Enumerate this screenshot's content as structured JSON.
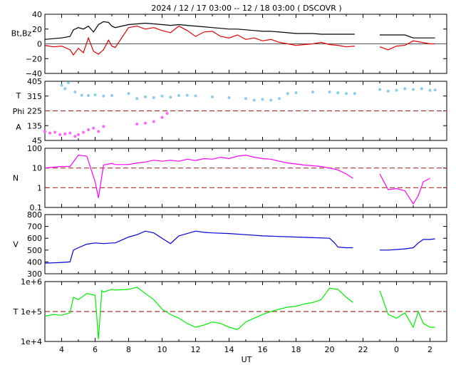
{
  "title": "2024 / 12 / 17   03:00  --  12 / 18   03:00 ( DSCOVR )",
  "xlabel": "UT",
  "x_ticks": [
    "4",
    "6",
    "8",
    "10",
    "12",
    "14",
    "16",
    "18",
    "20",
    "22",
    "0",
    "2"
  ],
  "colors": {
    "bt": "#000000",
    "bz": "#e00000",
    "phi": "#88ccee",
    "theta": "#ff66ff",
    "density": "#ff00ff",
    "speed": "#0000dd",
    "temperature": "#00ee00",
    "ref_line": "#aa3333"
  },
  "chart_data": [
    {
      "type": "line",
      "panel": "magnetic field",
      "ylabel": "Bt,Bz",
      "yticks": [
        "40",
        "20",
        "0",
        "−20",
        "−40"
      ],
      "ylim": [
        -40,
        40
      ],
      "x_unit": "hours since 2024-12-17 00:00 UT",
      "xlim": [
        3,
        27
      ],
      "series": [
        {
          "key": "bt",
          "x": [
            3.0,
            3.5,
            4.0,
            4.5,
            4.7,
            5.0,
            5.3,
            5.6,
            5.9,
            6.2,
            6.5,
            6.8,
            7.0,
            7.2,
            8.0,
            8.5,
            9.0,
            9.5,
            10.0,
            10.5,
            11.0,
            11.5,
            12.0,
            12.5,
            13.0,
            13.5,
            14.0,
            14.5,
            15.0,
            15.5,
            16.0,
            16.5,
            17.0,
            17.5,
            18.0,
            18.5,
            19.0,
            19.5,
            20.0,
            20.5,
            21.0,
            21.5,
            23.0,
            23.5,
            24.0,
            24.5,
            25.0,
            25.5,
            26.0,
            26.3
          ],
          "y": [
            6,
            7,
            8,
            10,
            19,
            22,
            20,
            24,
            16,
            26,
            30,
            29,
            24,
            22,
            26,
            27,
            28,
            27,
            26,
            25,
            26,
            25,
            24,
            23,
            22,
            21,
            20,
            20,
            19,
            18,
            17,
            17,
            16,
            15,
            14,
            14,
            14,
            13,
            13,
            13,
            13,
            13,
            12,
            12,
            12,
            12,
            8,
            8,
            8,
            8
          ]
        },
        {
          "key": "bz",
          "x": [
            3.0,
            3.5,
            4.0,
            4.5,
            4.7,
            5.0,
            5.3,
            5.6,
            5.9,
            6.2,
            6.5,
            6.8,
            7.0,
            7.2,
            8.0,
            8.5,
            9.0,
            9.5,
            10.0,
            10.5,
            11.0,
            11.5,
            12.0,
            12.5,
            13.0,
            13.5,
            14.0,
            14.5,
            15.0,
            15.5,
            16.0,
            16.5,
            17.0,
            17.5,
            18.0,
            18.5,
            19.0,
            19.5,
            20.0,
            20.5,
            21.0,
            21.5,
            23.0,
            23.5,
            24.0,
            24.5,
            25.0,
            25.5,
            26.0,
            26.3
          ],
          "y": [
            -2,
            -4,
            -3,
            -8,
            -15,
            -6,
            -12,
            8,
            -10,
            -14,
            -8,
            5,
            -3,
            -5,
            22,
            24,
            20,
            22,
            18,
            15,
            24,
            18,
            10,
            16,
            17,
            10,
            8,
            12,
            6,
            8,
            4,
            6,
            2,
            0,
            -2,
            -1,
            0,
            2,
            -1,
            -2,
            -4,
            -3,
            -4,
            -8,
            -3,
            -2,
            4,
            2,
            0,
            0
          ]
        }
      ]
    },
    {
      "type": "scatter",
      "panel": "IMF angles",
      "ylabel_top": "T",
      "ylabel_mid": "Phi",
      "ylabel_bot": "A",
      "yticks": [
        "405",
        "315",
        "225",
        "135",
        "45"
      ],
      "ylim": [
        45,
        405
      ],
      "ref_line": 225,
      "series": [
        {
          "key": "phi",
          "x": [
            4.0,
            4.2,
            4.4,
            4.8,
            5.2,
            5.6,
            6.0,
            6.5,
            7.0,
            8.0,
            8.5,
            9.0,
            9.5,
            10.0,
            10.5,
            11.0,
            11.5,
            12.0,
            13.0,
            14.0,
            15.0,
            15.5,
            16.0,
            16.5,
            17.0,
            17.5,
            18.0,
            19.0,
            20.0,
            20.5,
            21.0,
            21.5,
            23.0,
            23.5,
            24.0,
            24.5,
            25.0,
            25.5,
            26.0,
            26.3
          ],
          "y": [
            380,
            360,
            395,
            340,
            320,
            318,
            322,
            315,
            318,
            330,
            300,
            310,
            305,
            315,
            308,
            318,
            320,
            316,
            310,
            305,
            300,
            290,
            295,
            290,
            300,
            330,
            335,
            340,
            340,
            335,
            330,
            330,
            355,
            345,
            350,
            360,
            355,
            360,
            350,
            352
          ]
        },
        {
          "key": "theta",
          "x": [
            3.0,
            3.3,
            3.6,
            3.9,
            4.2,
            4.5,
            4.8,
            5.0,
            5.3,
            5.6,
            5.9,
            6.2,
            6.5,
            8.5,
            9.0,
            9.5,
            10.0,
            10.3
          ],
          "y": [
            100,
            90,
            95,
            80,
            85,
            90,
            70,
            80,
            95,
            110,
            120,
            100,
            130,
            145,
            150,
            160,
            185,
            210
          ]
        }
      ]
    },
    {
      "type": "line",
      "panel": "density",
      "ylabel": "N",
      "yticks": [
        "100",
        "10",
        "1",
        "0.1"
      ],
      "ylim": [
        0.1,
        100
      ],
      "scale": "log",
      "ref_lines": [
        10,
        1
      ],
      "series": [
        {
          "key": "density",
          "x": [
            3.0,
            3.5,
            4.0,
            4.5,
            5.0,
            5.5,
            6.0,
            6.2,
            6.5,
            6.8,
            7.0,
            7.2,
            8.0,
            8.5,
            9.0,
            9.5,
            10.0,
            10.5,
            11.0,
            11.5,
            12.0,
            12.5,
            13.0,
            13.5,
            14.0,
            14.5,
            15.0,
            15.5,
            16.0,
            16.5,
            17.0,
            17.5,
            18.0,
            18.5,
            19.0,
            19.5,
            20.0,
            20.5,
            21.0,
            21.4,
            23.0,
            23.5,
            24.0,
            24.5,
            25.0,
            25.3,
            25.6,
            26.0
          ],
          "y": [
            10,
            11,
            12,
            12,
            45,
            40,
            2,
            0.3,
            14,
            16,
            17,
            15,
            15,
            18,
            20,
            25,
            22,
            25,
            22,
            28,
            24,
            30,
            28,
            35,
            30,
            40,
            45,
            35,
            30,
            28,
            22,
            18,
            16,
            14,
            13,
            12,
            10,
            8,
            5,
            3,
            5,
            0.8,
            0.9,
            0.7,
            0.15,
            0.4,
            2,
            3
          ]
        }
      ]
    },
    {
      "type": "line",
      "panel": "speed",
      "ylabel": "V",
      "yticks": [
        "800",
        "700",
        "600",
        "500",
        "400",
        "300"
      ],
      "ylim": [
        300,
        800
      ],
      "series": [
        {
          "key": "speed",
          "x": [
            3.0,
            3.5,
            4.0,
            4.5,
            4.7,
            5.0,
            5.5,
            6.0,
            6.5,
            7.0,
            7.2,
            8.0,
            8.5,
            9.0,
            9.5,
            10.0,
            10.5,
            11.0,
            11.5,
            12.0,
            12.5,
            13.0,
            14.0,
            15.0,
            16.0,
            17.0,
            18.0,
            19.0,
            20.0,
            20.3,
            20.5,
            21.0,
            21.4,
            23.0,
            23.5,
            24.0,
            24.5,
            25.0,
            25.3,
            25.6,
            26.0,
            26.3
          ],
          "y": [
            390,
            392,
            396,
            400,
            500,
            520,
            550,
            560,
            555,
            560,
            560,
            610,
            630,
            660,
            645,
            600,
            555,
            620,
            640,
            660,
            650,
            645,
            640,
            630,
            620,
            615,
            610,
            605,
            600,
            560,
            525,
            520,
            520,
            500,
            500,
            505,
            510,
            520,
            560,
            590,
            590,
            595
          ]
        }
      ]
    },
    {
      "type": "line",
      "panel": "temperature",
      "ylabel": "T",
      "yticks": [
        "1e+6",
        "1e+5",
        "1e+4"
      ],
      "ylim": [
        10000,
        1000000
      ],
      "scale": "log",
      "ref_line": 100000,
      "series": [
        {
          "key": "temperature",
          "x": [
            3.0,
            3.5,
            4.0,
            4.5,
            4.7,
            5.0,
            5.5,
            6.0,
            6.2,
            6.4,
            6.5,
            7.0,
            7.2,
            8.0,
            8.5,
            9.0,
            9.5,
            10.0,
            10.5,
            11.0,
            11.5,
            12.0,
            12.5,
            13.0,
            13.5,
            14.0,
            14.5,
            15.0,
            15.5,
            16.0,
            16.5,
            17.0,
            17.5,
            18.0,
            18.5,
            19.0,
            19.5,
            20.0,
            20.5,
            21.0,
            21.4,
            23.0,
            23.5,
            24.0,
            24.5,
            25.0,
            25.3,
            25.6,
            26.0,
            26.3
          ],
          "y": [
            70000,
            80000,
            75000,
            90000,
            300000,
            250000,
            400000,
            350000,
            12000,
            500000,
            450000,
            550000,
            520000,
            550000,
            650000,
            400000,
            250000,
            120000,
            80000,
            60000,
            40000,
            30000,
            35000,
            45000,
            40000,
            30000,
            25000,
            45000,
            60000,
            80000,
            100000,
            120000,
            140000,
            150000,
            180000,
            200000,
            250000,
            600000,
            550000,
            300000,
            200000,
            500000,
            80000,
            60000,
            90000,
            30000,
            100000,
            40000,
            30000,
            30000
          ]
        }
      ]
    }
  ]
}
